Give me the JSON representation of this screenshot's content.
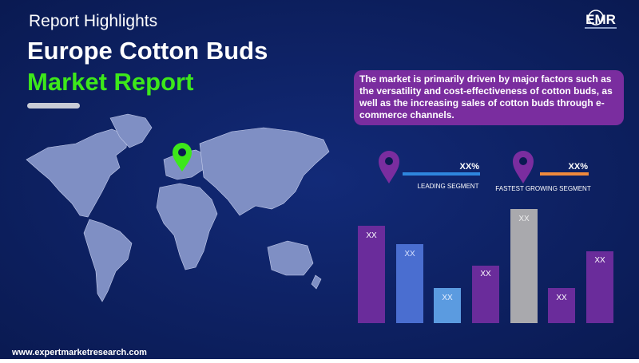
{
  "header": {
    "kicker": "Report Highlights",
    "title_line1": "Europe Cotton Buds",
    "title_line2": "Market Report"
  },
  "logo": {
    "text": "EMR"
  },
  "description": "The market is primarily driven by major factors such as the versatility and cost-effectiveness of cotton buds, as well as the increasing sales of cotton buds through e-commerce channels.",
  "segments": [
    {
      "value": "XX%",
      "label": "LEADING SEGMENT"
    },
    {
      "value": "XX%",
      "label": "FASTEST GROWING SEGMENT"
    }
  ],
  "bar_labels": [
    "XX",
    "XX",
    "XX",
    "XX",
    "XX",
    "XX",
    "XX"
  ],
  "footer": {
    "url": "www.expertmarketresearch.com"
  }
}
